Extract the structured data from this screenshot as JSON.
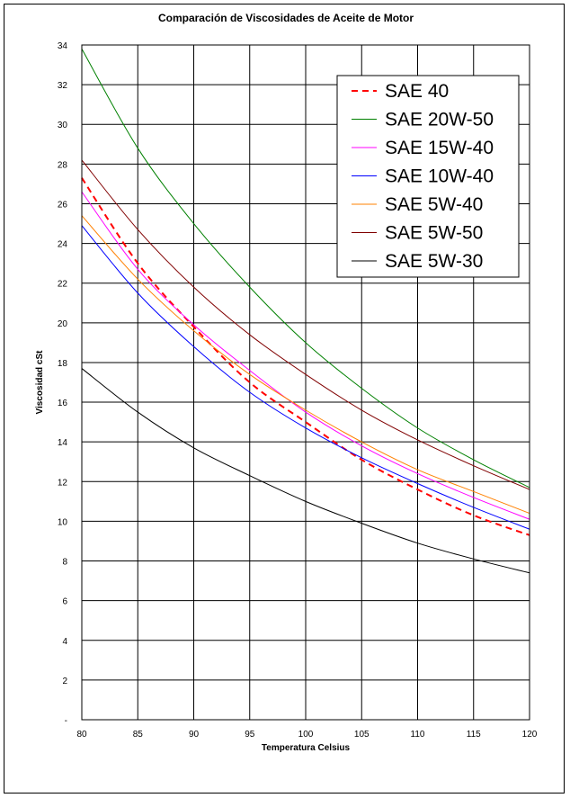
{
  "chart_data": {
    "type": "line",
    "title": "Comparación de Viscosidades de Aceite de Motor",
    "xlabel": "Temperatura Celsius",
    "ylabel": "Viscosidad cSt",
    "xlim": [
      80,
      120
    ],
    "ylim": [
      0,
      34
    ],
    "x_ticks": [
      "80",
      "85",
      "90",
      "95",
      "100",
      "105",
      "110",
      "115",
      "120"
    ],
    "y_ticks": [
      "-",
      "2",
      "4",
      "6",
      "8",
      "10",
      "12",
      "14",
      "16",
      "18",
      "20",
      "22",
      "24",
      "26",
      "28",
      "30",
      "32",
      "34"
    ],
    "grid": true,
    "legend_position": "top-right",
    "x": [
      80,
      85,
      90,
      95,
      100,
      105,
      110,
      115,
      120
    ],
    "series": [
      {
        "name": "SAE 40",
        "color": "#ff0000",
        "dashed": true,
        "values": [
          27.3,
          23.0,
          19.8,
          17.0,
          15.0,
          13.1,
          11.6,
          10.3,
          9.3
        ]
      },
      {
        "name": "SAE 20W-50",
        "color": "#008000",
        "dashed": false,
        "values": [
          33.8,
          28.8,
          25.0,
          21.8,
          19.0,
          16.7,
          14.7,
          13.1,
          11.7
        ]
      },
      {
        "name": "SAE 15W-40",
        "color": "#ff00ff",
        "dashed": false,
        "values": [
          26.6,
          22.7,
          19.9,
          17.6,
          15.5,
          13.8,
          12.4,
          11.2,
          10.1
        ]
      },
      {
        "name": "SAE 10W-40",
        "color": "#0000ff",
        "dashed": false,
        "values": [
          24.9,
          21.5,
          18.8,
          16.5,
          14.7,
          13.2,
          11.9,
          10.7,
          9.6
        ]
      },
      {
        "name": "SAE 5W-40",
        "color": "#ff8000",
        "dashed": false,
        "values": [
          25.4,
          22.2,
          19.6,
          17.4,
          15.6,
          14.0,
          12.6,
          11.5,
          10.4
        ]
      },
      {
        "name": "SAE 5W-50",
        "color": "#800000",
        "dashed": false,
        "values": [
          28.2,
          24.7,
          21.8,
          19.4,
          17.4,
          15.6,
          14.1,
          12.8,
          11.6
        ]
      },
      {
        "name": "SAE 5W-30",
        "color": "#000000",
        "dashed": false,
        "values": [
          17.7,
          15.5,
          13.7,
          12.3,
          11.0,
          9.9,
          8.9,
          8.1,
          7.4
        ]
      }
    ]
  }
}
